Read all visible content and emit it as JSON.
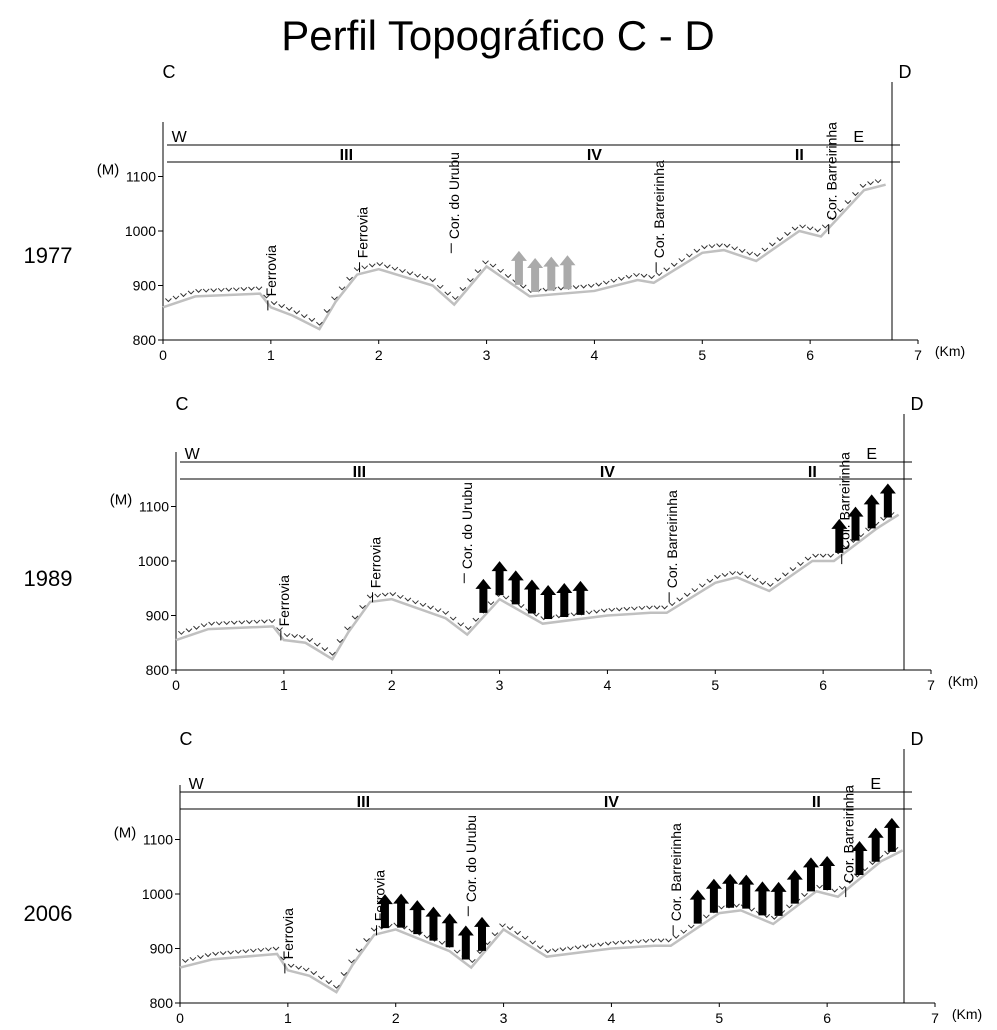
{
  "title": "Perfil Topográfico C - D",
  "chart_data": [
    {
      "type": "line",
      "year": "1977",
      "start_label": "C",
      "end_label": "D",
      "zones": [
        "W",
        "III",
        "IV",
        "II",
        "E"
      ],
      "y_unit": "(M)",
      "x_unit": "(Km)",
      "annotations": [
        "Ferrovia",
        "Ferrovia",
        "Cor. do Urubu",
        "Cor. Barreirinha",
        "Cor. Barreirinha"
      ],
      "x": [
        0,
        0.3,
        0.9,
        1.0,
        1.2,
        1.45,
        1.6,
        1.8,
        2.0,
        2.5,
        2.7,
        3.0,
        3.4,
        4.0,
        4.4,
        4.55,
        5.0,
        5.2,
        5.5,
        5.9,
        6.1,
        6.5,
        6.7
      ],
      "values": [
        860,
        880,
        885,
        860,
        845,
        820,
        870,
        920,
        930,
        900,
        865,
        935,
        880,
        890,
        910,
        905,
        960,
        965,
        945,
        1000,
        990,
        1075,
        1085
      ],
      "color": "#c0c0c0",
      "xlim": [
        0,
        7
      ],
      "xticks": [
        0,
        1,
        2,
        3,
        4,
        5,
        6,
        7
      ],
      "ylim": [
        800,
        1200
      ],
      "yticks": [
        800,
        900,
        1000,
        1100
      ]
    },
    {
      "type": "line",
      "year": "1989",
      "start_label": "C",
      "end_label": "D",
      "zones": [
        "W",
        "III",
        "IV",
        "II",
        "E"
      ],
      "y_unit": "(M)",
      "x_unit": "(Km)",
      "annotations": [
        "Ferrovia",
        "Ferrovia",
        "Cor. do Urubu",
        "Cor. Barreirinha",
        "Cor. Barreirinha"
      ],
      "x": [
        0,
        0.3,
        0.9,
        1.0,
        1.2,
        1.45,
        1.6,
        1.8,
        2.0,
        2.5,
        2.7,
        3.0,
        3.4,
        4.0,
        4.4,
        4.55,
        5.0,
        5.2,
        5.5,
        5.9,
        6.1,
        6.5,
        6.7
      ],
      "values": [
        855,
        875,
        880,
        855,
        850,
        820,
        870,
        925,
        930,
        895,
        865,
        930,
        885,
        900,
        905,
        905,
        960,
        970,
        945,
        1000,
        1000,
        1060,
        1085
      ],
      "color": "#c0c0c0",
      "xlim": [
        0,
        7
      ],
      "xticks": [
        0,
        1,
        2,
        3,
        4,
        5,
        6,
        7
      ],
      "ylim": [
        800,
        1200
      ],
      "yticks": [
        800,
        900,
        1000,
        1100
      ]
    },
    {
      "type": "line",
      "year": "2006",
      "start_label": "C",
      "end_label": "D",
      "zones": [
        "W",
        "III",
        "IV",
        "II",
        "E"
      ],
      "y_unit": "(M)",
      "x_unit": "(Km)",
      "annotations": [
        "Ferrovia",
        "Ferrovia",
        "Cor. do Urubu",
        "Cor. Barreirinha",
        "Cor. Barreirinha"
      ],
      "x": [
        0,
        0.3,
        0.9,
        1.0,
        1.2,
        1.45,
        1.6,
        1.8,
        2.0,
        2.5,
        2.7,
        3.0,
        3.4,
        4.0,
        4.4,
        4.55,
        5.0,
        5.2,
        5.5,
        5.9,
        6.1,
        6.5,
        6.7
      ],
      "values": [
        865,
        880,
        890,
        860,
        850,
        820,
        870,
        925,
        935,
        895,
        865,
        935,
        885,
        900,
        905,
        905,
        965,
        970,
        945,
        1005,
        995,
        1060,
        1080
      ],
      "color": "#c0c0c0",
      "xlim": [
        0,
        7
      ],
      "xticks": [
        0,
        1,
        2,
        3,
        4,
        5,
        6,
        7
      ],
      "ylim": [
        800,
        1200
      ],
      "yticks": [
        800,
        900,
        1000,
        1100
      ]
    }
  ]
}
